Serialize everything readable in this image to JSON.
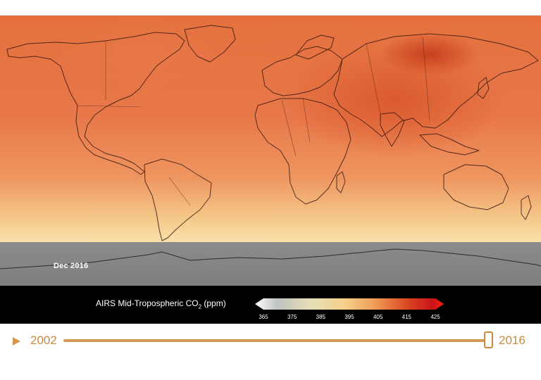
{
  "map": {
    "date_label": "Dec  2016",
    "legend": {
      "title_prefix": "AIRS Mid-Tropospheric CO",
      "title_subscript": "2",
      "title_suffix": " (ppm)",
      "ticks": [
        "365",
        "375",
        "385",
        "395",
        "405",
        "415",
        "425"
      ],
      "colors": [
        "#ffffff",
        "#bfc3c0",
        "#e6dfb8",
        "#f6cf8a",
        "#ef9a55",
        "#db4a22",
        "#c8141a",
        "#ff1c10"
      ]
    }
  },
  "timeline": {
    "start_year": "2002",
    "end_year": "2016",
    "progress": 1.0,
    "accent_color": "#d29a56"
  }
}
